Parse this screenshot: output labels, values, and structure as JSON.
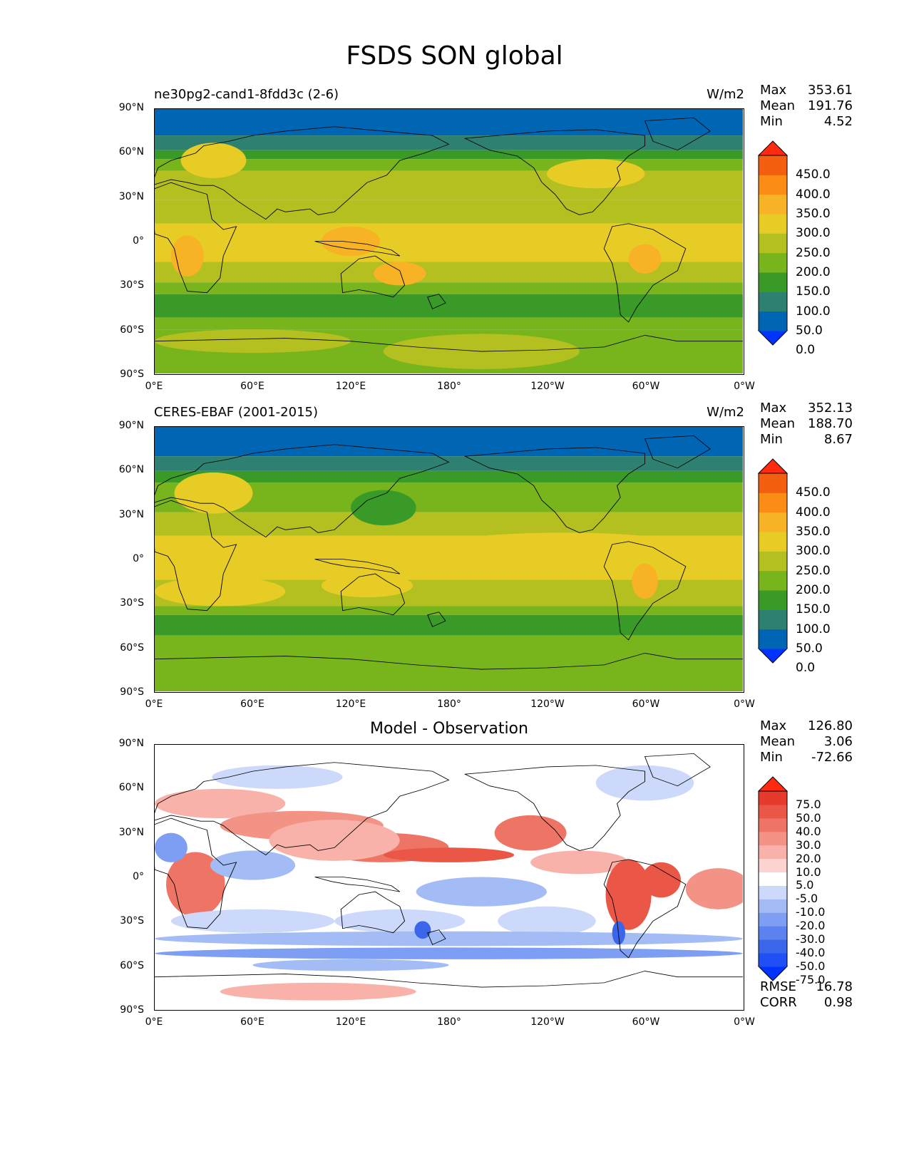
{
  "title": "FSDS SON global",
  "lat_ticks": [
    "90°N",
    "60°N",
    "30°N",
    "0°",
    "30°S",
    "60°S",
    "90°S"
  ],
  "lon_ticks": [
    "0°E",
    "60°E",
    "120°E",
    "180°",
    "120°W",
    "60°W",
    "0°W"
  ],
  "panels": [
    {
      "title_left": "ne30pg2-cand1-8fdd3c (2-6)",
      "title_center": "",
      "units": "W/m2",
      "stats": [
        {
          "label": "Max",
          "value": "353.61"
        },
        {
          "label": "Mean",
          "value": "191.76"
        },
        {
          "label": "Min",
          "value": "4.52"
        }
      ],
      "colorbar": {
        "labels": [
          "450.0",
          "400.0",
          "350.0",
          "300.0",
          "250.0",
          "200.0",
          "150.0",
          "100.0",
          "50.0",
          "0.0"
        ],
        "colors": [
          "#0033ff",
          "#0066b3",
          "#2e8070",
          "#3a9a28",
          "#78b41c",
          "#b3c020",
          "#e8cc26",
          "#f7b325",
          "#fb8c15",
          "#f35e10",
          "#ff2a10"
        ]
      }
    },
    {
      "title_left": "CERES-EBAF (2001-2015)",
      "title_center": "",
      "units": "W/m2",
      "stats": [
        {
          "label": "Max",
          "value": "352.13"
        },
        {
          "label": "Mean",
          "value": "188.70"
        },
        {
          "label": "Min",
          "value": "8.67"
        }
      ],
      "colorbar": {
        "labels": [
          "450.0",
          "400.0",
          "350.0",
          "300.0",
          "250.0",
          "200.0",
          "150.0",
          "100.0",
          "50.0",
          "0.0"
        ],
        "colors": [
          "#0033ff",
          "#0066b3",
          "#2e8070",
          "#3a9a28",
          "#78b41c",
          "#b3c020",
          "#e8cc26",
          "#f7b325",
          "#fb8c15",
          "#f35e10",
          "#ff2a10"
        ]
      }
    },
    {
      "title_left": "",
      "title_center": "Model - Observation",
      "units": "",
      "stats": [
        {
          "label": "Max",
          "value": "126.80"
        },
        {
          "label": "Mean",
          "value": "3.06"
        },
        {
          "label": "Min",
          "value": "-72.66"
        }
      ],
      "colorbar": {
        "labels": [
          "75.0",
          "50.0",
          "40.0",
          "30.0",
          "20.0",
          "10.0",
          "5.0",
          "-5.0",
          "-10.0",
          "-20.0",
          "-30.0",
          "-40.0",
          "-50.0",
          "-75.0"
        ],
        "colors": [
          "#0033ff",
          "#1f4ff5",
          "#3b66ea",
          "#5b82ee",
          "#7d9ef2",
          "#a3bcf5",
          "#cdd9fa",
          "#ffffff",
          "#fcd3cf",
          "#f8b2aa",
          "#f39386",
          "#ee7565",
          "#ea5747",
          "#e63a2c",
          "#ff2a10"
        ]
      },
      "bottom_stats": [
        {
          "label": "RMSE",
          "value": "16.78"
        },
        {
          "label": "CORR",
          "value": "0.98"
        }
      ]
    }
  ]
}
